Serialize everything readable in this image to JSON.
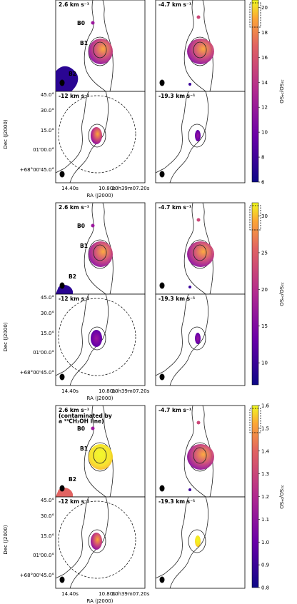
{
  "figure": {
    "axes": {
      "ra_ticks": [
        "14.40s",
        "10.80s",
        "20h39m07.20s"
      ],
      "ra_label": "RA (J2000)",
      "dec_ticks": [
        "45.0°",
        "30.0°",
        "15.0°",
        "01'00.0°",
        "+68°00'45.0°"
      ],
      "dec_label": "Dec (J2000)"
    },
    "groups": [
      {
        "panels": [
          {
            "label": "2.6 km s⁻¹"
          },
          {
            "label": "-4.7 km s⁻¹"
          },
          {
            "label": "-12 km s⁻¹"
          },
          {
            "label": "-19.3 km s⁻¹"
          }
        ],
        "sources": [
          "B0",
          "B1",
          "B2"
        ],
        "colorbar": {
          "label": "³²SO/³⁴SO",
          "range": [
            6,
            20.6
          ],
          "ticks": [
            6,
            8,
            10,
            12,
            14,
            16,
            18,
            20
          ]
        }
      },
      {
        "panels": [
          {
            "label": "2.6 km s⁻¹"
          },
          {
            "label": "-4.7 km s⁻¹"
          },
          {
            "label": "-12 km s⁻¹"
          },
          {
            "label": "-19.3 km s⁻¹"
          }
        ],
        "sources": [
          "B0",
          "B1",
          "B2"
        ],
        "colorbar": {
          "label": "³²SO/³⁴SO",
          "range": [
            7,
            31.8
          ],
          "ticks": [
            10,
            15,
            20,
            25,
            30
          ]
        }
      },
      {
        "panels": [
          {
            "label": "2.6 km s⁻¹",
            "note": [
              "(contaminated by",
              "a ¹³CH₃OH line)"
            ]
          },
          {
            "label": "-4.7 km s⁻¹"
          },
          {
            "label": "-12 km s⁻¹"
          },
          {
            "label": "-19.3 km s⁻¹"
          }
        ],
        "sources": [
          "B0",
          "B1",
          "B2"
        ],
        "colorbar": {
          "label": "³²SO/³⁴SO",
          "range": [
            0.8,
            1.6
          ],
          "ticks": [
            0.8,
            0.9,
            {
              "value": 1,
              "label": "1.0"
            },
            1.1,
            1.2,
            1.3,
            1.4,
            1.5,
            1.6
          ]
        }
      }
    ]
  }
}
